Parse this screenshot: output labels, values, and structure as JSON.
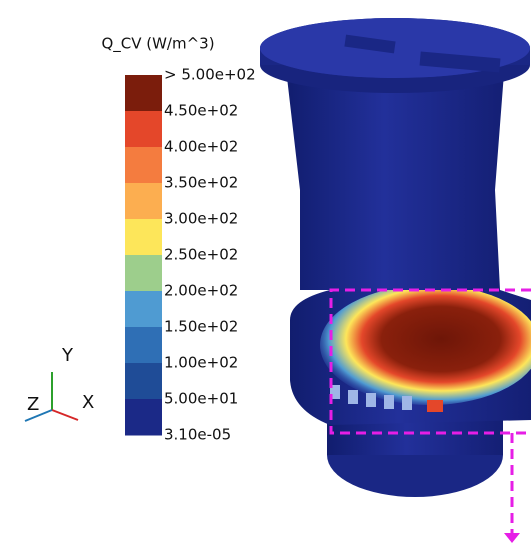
{
  "legend": {
    "title": "Q_CV (W/m^3)",
    "labels": [
      "> 5.00e+02",
      "4.50e+02",
      "4.00e+02",
      "3.50e+02",
      "3.00e+02",
      "2.50e+02",
      "2.00e+02",
      "1.50e+02",
      "1.00e+02",
      "5.00e+01",
      "3.10e-05"
    ],
    "colors": [
      "#7b1d0c",
      "#e4472a",
      "#f47c3f",
      "#fcae50",
      "#fde65a",
      "#9dce8c",
      "#4f9bd2",
      "#2f6fb5",
      "#1f4c97",
      "#1b2987"
    ]
  },
  "axes": {
    "y": "Y",
    "z": "Z",
    "x": "X"
  }
}
